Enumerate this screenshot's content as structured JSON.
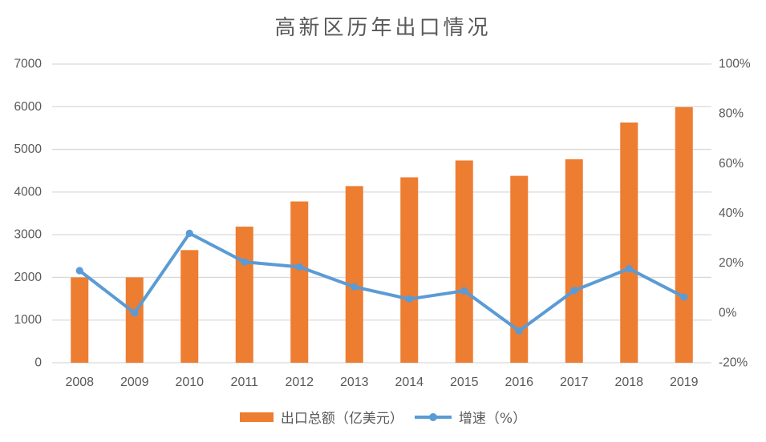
{
  "title": "高新区历年出口情况",
  "legend": {
    "bar_label": "出口总额（亿美元）",
    "line_label": "增速（%）"
  },
  "colors": {
    "bar": "#ED7D31",
    "line": "#5B9BD5",
    "grid": "#D9D9D9",
    "text": "#595959"
  },
  "chart_data": {
    "type": "bar+line combo",
    "title": "高新区历年出口情况",
    "categories": [
      "2008",
      "2009",
      "2010",
      "2011",
      "2012",
      "2013",
      "2014",
      "2015",
      "2016",
      "2017",
      "2018",
      "2019"
    ],
    "series": [
      {
        "name": "出口总额（亿美元）",
        "type": "bar",
        "axis": "left",
        "color": "#ED7D31",
        "values": [
          2000,
          2000,
          2640,
          3190,
          3780,
          4140,
          4345,
          4740,
          4380,
          4770,
          5630,
          5990
        ]
      },
      {
        "name": "增速（%）",
        "type": "line",
        "axis": "right",
        "color": "#5B9BD5",
        "values": [
          17,
          0,
          32,
          20.5,
          18.5,
          10.5,
          5.6,
          8.9,
          -7.2,
          9,
          17.8,
          6.4
        ]
      }
    ],
    "left_axis": {
      "min": 0,
      "max": 7000,
      "step": 1000,
      "tick_labels_top_to_bottom": [
        "7000",
        "6000",
        "5000",
        "4000",
        "3000",
        "2000",
        "1000",
        "0"
      ]
    },
    "right_axis": {
      "min": -20,
      "max": 100,
      "step": 20,
      "tick_labels_top_to_bottom": [
        "100%",
        "80%",
        "60%",
        "40%",
        "20%",
        "0%",
        "-20%"
      ]
    },
    "grid": "horizontal gridlines on, no plot border",
    "legend_position": "bottom"
  }
}
